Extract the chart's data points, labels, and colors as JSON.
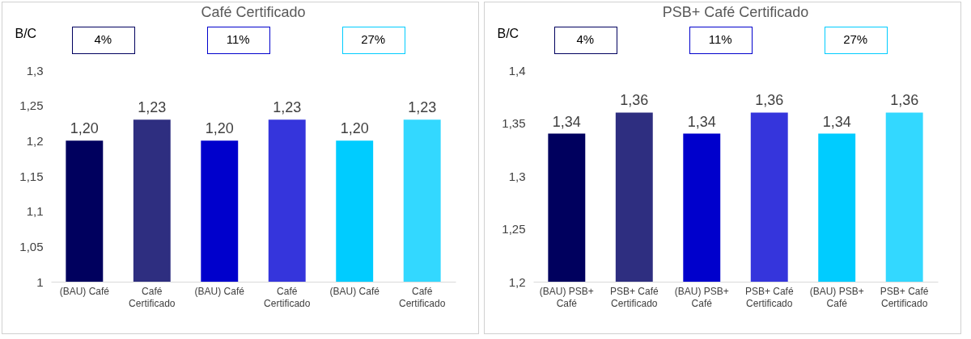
{
  "chart_data": [
    {
      "type": "bar",
      "title": "Café Certificado",
      "ylabel": "B/C",
      "categories": [
        "(BAU) Café",
        "Café Certificado",
        "(BAU) Café",
        "Café Certificado",
        "(BAU) Café",
        "Café Certificado"
      ],
      "values": [
        1.2,
        1.23,
        1.2,
        1.23,
        1.2,
        1.23
      ],
      "value_labels": [
        "1,20",
        "1,23",
        "1,20",
        "1,23",
        "1,20",
        "1,23"
      ],
      "colors": [
        "#00005e",
        "#2e2e80",
        "#0000cc",
        "#3535dc",
        "#00ccff",
        "#33d8ff"
      ],
      "ylim": [
        1,
        1.3
      ],
      "yticks": [
        1,
        {
          "value": 1.05,
          "label": "1,05"
        },
        {
          "value": 1.1,
          "label": "1,1"
        },
        {
          "value": 1.15,
          "label": "1,15"
        },
        {
          "value": 1.2,
          "label": "1,2"
        },
        {
          "value": 1.25,
          "label": "1,25"
        },
        {
          "value": 1.3,
          "label": "1,3"
        }
      ],
      "annotations": [
        "4%",
        "11%",
        "27%"
      ],
      "grid": false,
      "legend": false
    },
    {
      "type": "bar",
      "title": "PSB+ Café Certificado",
      "ylabel": "B/C",
      "categories": [
        "(BAU) PSB+ Café",
        "PSB+ Café Certificado",
        "(BAU) PSB+ Café",
        "PSB+ Café Certificado",
        "(BAU) PSB+ Café",
        "PSB+ Café Certificado"
      ],
      "values": [
        1.34,
        1.36,
        1.34,
        1.36,
        1.34,
        1.36
      ],
      "value_labels": [
        "1,34",
        "1,36",
        "1,34",
        "1,36",
        "1,34",
        "1,36"
      ],
      "colors": [
        "#00005e",
        "#2e2e80",
        "#0000cc",
        "#3535dc",
        "#00ccff",
        "#33d8ff"
      ],
      "ylim": [
        1.2,
        1.4
      ],
      "yticks": [
        {
          "value": 1.2,
          "label": "1,2"
        },
        {
          "value": 1.25,
          "label": "1,25"
        },
        {
          "value": 1.3,
          "label": "1,3"
        },
        {
          "value": 1.35,
          "label": "1,35"
        },
        {
          "value": 1.4,
          "label": "1,4"
        }
      ],
      "annotations": [
        "4%",
        "11%",
        "27%"
      ],
      "grid": false,
      "legend": false
    }
  ]
}
